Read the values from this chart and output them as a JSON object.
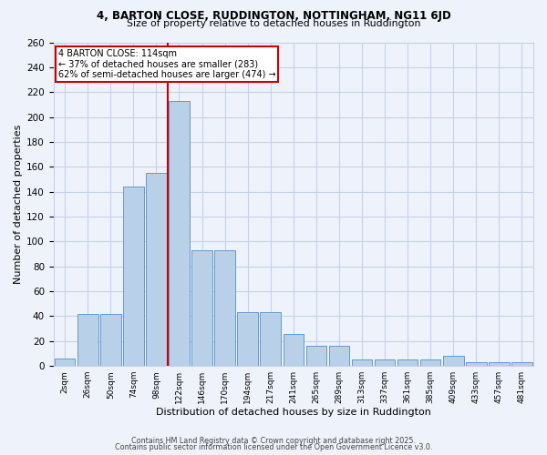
{
  "title1": "4, BARTON CLOSE, RUDDINGTON, NOTTINGHAM, NG11 6JD",
  "title2": "Size of property relative to detached houses in Ruddington",
  "xlabel": "Distribution of detached houses by size in Ruddington",
  "ylabel": "Number of detached properties",
  "categories": [
    "2sqm",
    "26sqm",
    "50sqm",
    "74sqm",
    "98sqm",
    "122sqm",
    "146sqm",
    "170sqm",
    "194sqm",
    "217sqm",
    "241sqm",
    "265sqm",
    "289sqm",
    "313sqm",
    "337sqm",
    "361sqm",
    "385sqm",
    "409sqm",
    "433sqm",
    "457sqm",
    "481sqm"
  ],
  "values": [
    6,
    42,
    42,
    144,
    155,
    213,
    93,
    93,
    43,
    43,
    26,
    16,
    16,
    5,
    5,
    5,
    5,
    8,
    3,
    3,
    3
  ],
  "bar_color": "#b8d0e8",
  "bar_edge_color": "#6699cc",
  "vline_color": "#cc0000",
  "vline_index": 4.5,
  "annotation_line1": "4 BARTON CLOSE: 114sqm",
  "annotation_line2": "← 37% of detached houses are smaller (283)",
  "annotation_line3": "62% of semi-detached houses are larger (474) →",
  "annotation_box_color": "#ffffff",
  "annotation_box_edge_color": "#cc0000",
  "footnote1": "Contains HM Land Registry data © Crown copyright and database right 2025.",
  "footnote2": "Contains public sector information licensed under the Open Government Licence v3.0.",
  "bg_color": "#eef2fb",
  "grid_color": "#c8d0e8",
  "ylim": [
    0,
    260
  ],
  "yticks": [
    0,
    20,
    40,
    60,
    80,
    100,
    120,
    140,
    160,
    180,
    200,
    220,
    240,
    260
  ]
}
